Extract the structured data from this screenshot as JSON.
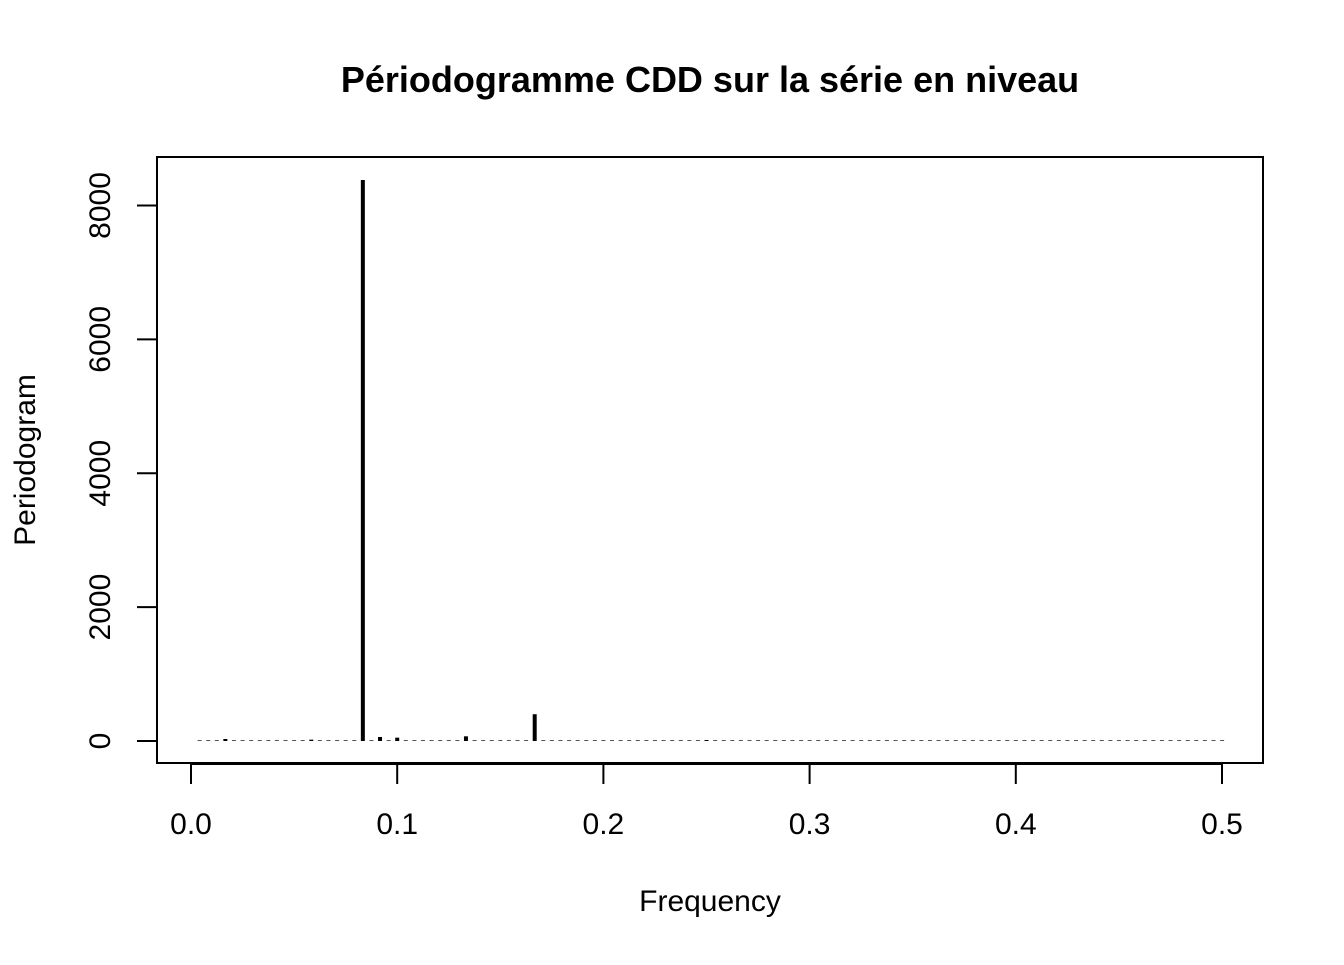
{
  "chart_data": {
    "type": "bar",
    "title": "Périodogramme CDD sur la série en niveau",
    "xlabel": "Frequency",
    "ylabel": "Periodogram",
    "xlim": [
      0.0,
      0.5
    ],
    "ylim": [
      0,
      8400
    ],
    "grid": false,
    "legend": "none",
    "x_ticks": [
      "0.0",
      "0.1",
      "0.2",
      "0.3",
      "0.4",
      "0.5"
    ],
    "y_ticks": [
      "0",
      "2000",
      "4000",
      "6000",
      "8000"
    ],
    "points": {
      "x_start": 0.004167,
      "x_step": 0.004167,
      "count": 120,
      "default_value": 10,
      "notable": [
        {
          "x": 0.0833,
          "y": 8380
        },
        {
          "x": 0.1667,
          "y": 400
        },
        {
          "x": 0.0917,
          "y": 60
        },
        {
          "x": 0.1,
          "y": 50
        },
        {
          "x": 0.1333,
          "y": 70
        },
        {
          "x": 0.0167,
          "y": 30
        },
        {
          "x": 0.0583,
          "y": 20
        },
        {
          "x": 0.25,
          "y": 15
        }
      ]
    }
  },
  "colors": {
    "stroke": "#000000",
    "background": "#ffffff"
  }
}
